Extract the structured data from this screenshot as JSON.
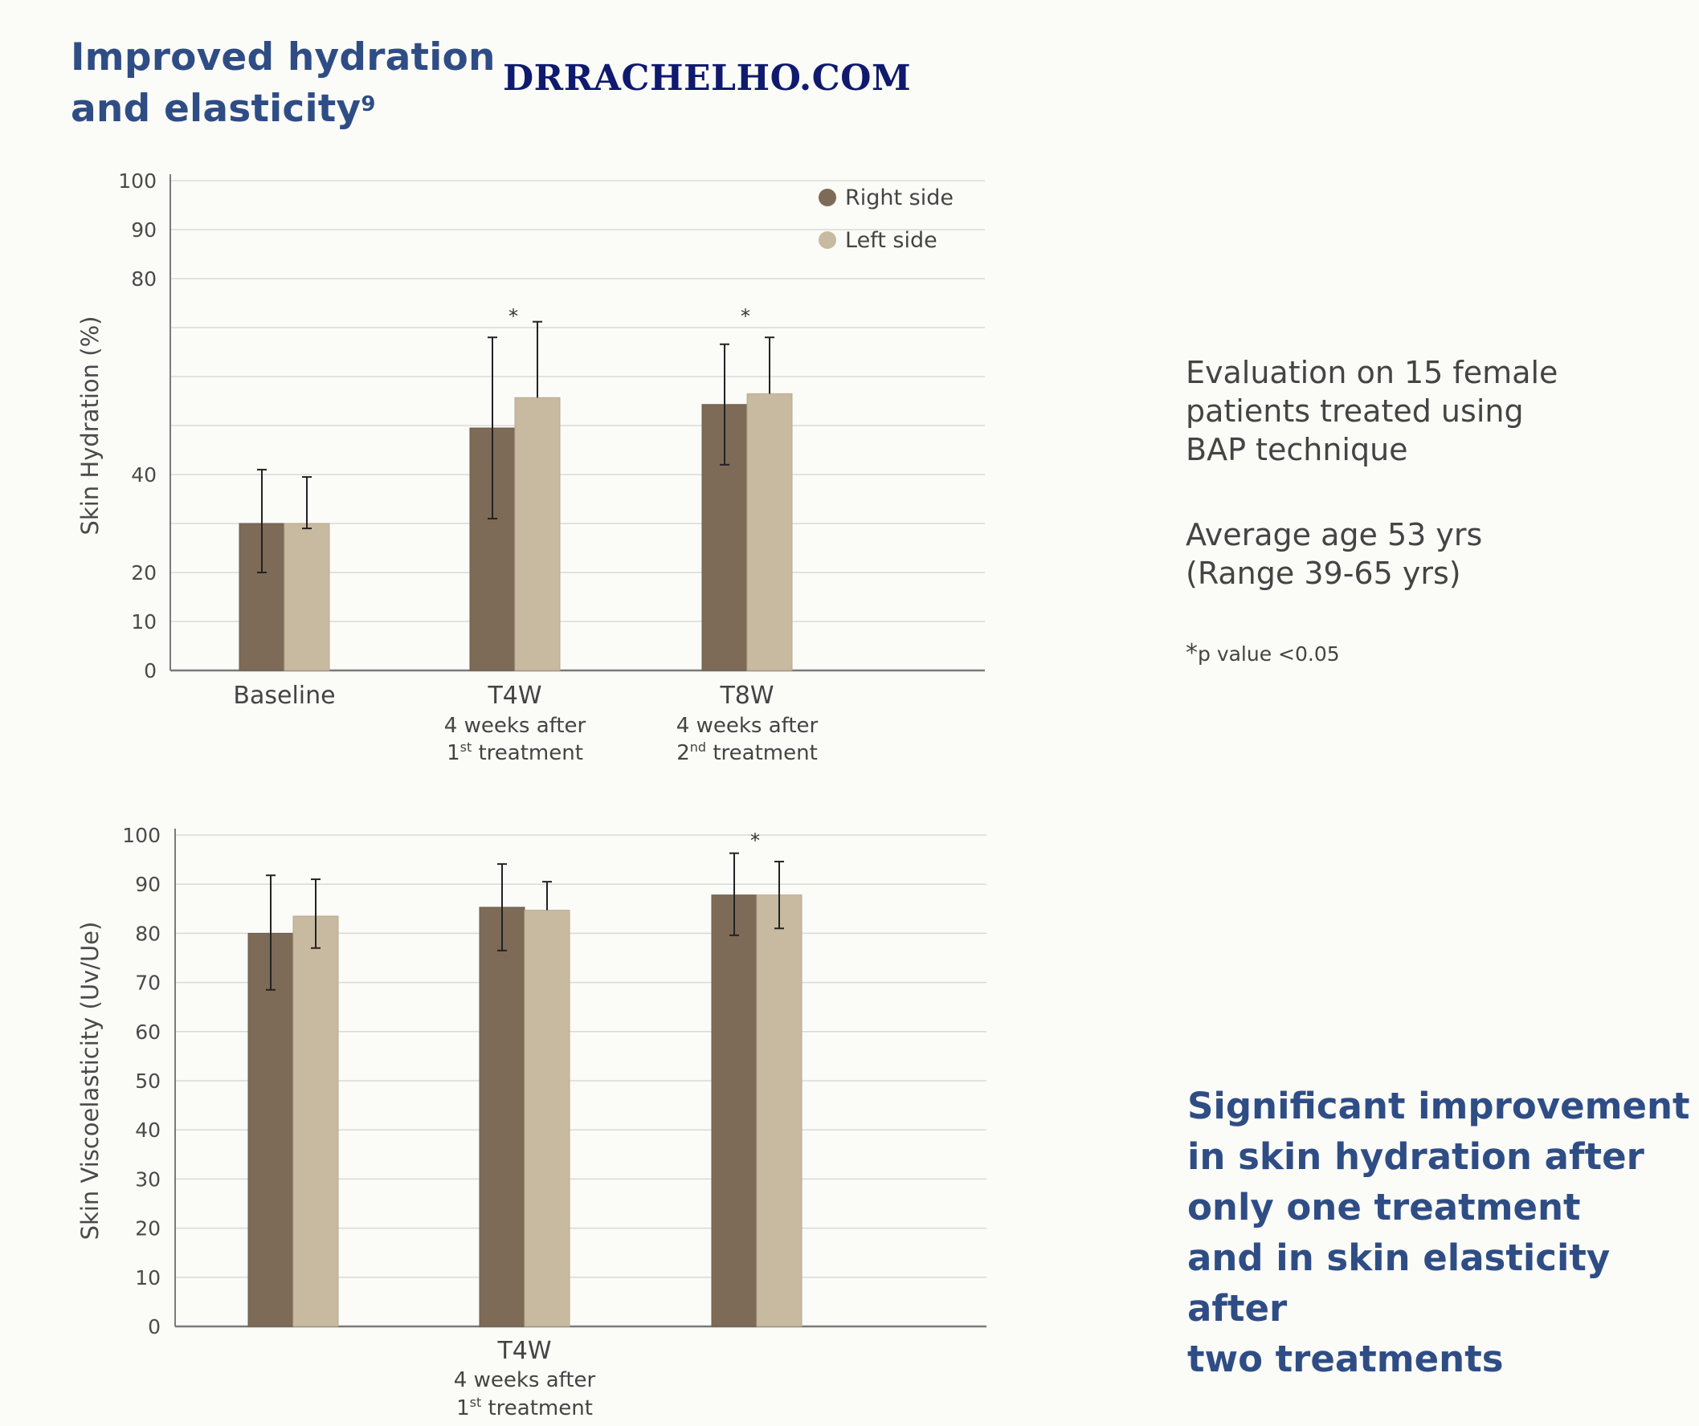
{
  "heading": {
    "line1": "Improved hydration",
    "line2": "and elasticity",
    "ref": "9"
  },
  "watermark": "DRRACHELHO.COM",
  "colors": {
    "right": "#7d6b58",
    "left": "#c8baa0",
    "grid": "#d9d9d9",
    "axis": "#7a7a7a",
    "heading": "#2f4d85",
    "watermark": "#0f1a6e"
  },
  "info": {
    "line1": "Evaluation on 15 female",
    "line2": "patients treated using",
    "line3": "BAP technique",
    "line4": "Average age 53 yrs",
    "line5": "(Range 39-65 yrs)",
    "note_star": "*",
    "note_text": "p value <0.05"
  },
  "conclusion": {
    "line1": "Significant improvement",
    "line2": "in skin hydration after",
    "line3": "only one treatment",
    "line4": "and in skin elasticity after",
    "line5": "two treatments"
  },
  "chart_data": [
    {
      "type": "bar",
      "ylabel": "Skin Hydration (%)",
      "ylim": [
        0,
        100
      ],
      "yticks": [
        "0",
        "10",
        "20",
        "40",
        "80",
        "90",
        "100"
      ],
      "ytick_values": [
        0,
        10,
        20,
        40,
        80,
        90,
        100
      ],
      "grid_values": [
        0,
        10,
        20,
        30,
        40,
        50,
        60,
        70,
        80,
        90,
        100
      ],
      "grid": true,
      "legend": [
        "Right side",
        "Left side"
      ],
      "legend_position": "top-right",
      "categories": [
        {
          "label": "Baseline",
          "sub1": "",
          "sub2": "",
          "sup": "",
          "sub2_rest": ""
        },
        {
          "label": "T4W",
          "sub1": "4 weeks after",
          "sub2": "1",
          "sup": "st",
          "sub2_rest": " treatment"
        },
        {
          "label": "T8W",
          "sub1": "4 weeks after",
          "sub2": "2",
          "sup": "nd",
          "sub2_rest": " treatment"
        }
      ],
      "significance": [
        "",
        "*",
        "*"
      ],
      "series": [
        {
          "name": "Right side",
          "values": [
            30,
            49.5,
            54.3
          ],
          "err_low": [
            10,
            18.5,
            12.3
          ],
          "err_high": [
            11,
            18.5,
            12.3
          ]
        },
        {
          "name": "Left side",
          "values": [
            30,
            55.7,
            56.5
          ],
          "err_low": [
            1,
            0,
            0
          ],
          "err_high": [
            9.5,
            15.5,
            11.5
          ]
        }
      ]
    },
    {
      "type": "bar",
      "ylabel": "Skin Viscoelasticity (Uv/Ue)",
      "ylim": [
        0,
        100
      ],
      "yticks": [
        "0",
        "10",
        "20",
        "30",
        "40",
        "50",
        "60",
        "70",
        "80",
        "90",
        "100"
      ],
      "ytick_values": [
        0,
        10,
        20,
        30,
        40,
        50,
        60,
        70,
        80,
        90,
        100
      ],
      "grid_values": [
        0,
        10,
        20,
        30,
        40,
        50,
        60,
        70,
        80,
        90,
        100
      ],
      "grid": true,
      "categories": [
        {
          "label": "",
          "sub1": "",
          "sub2": "",
          "sup": "",
          "sub2_rest": ""
        },
        {
          "label": "T4W",
          "sub1": "4 weeks after",
          "sub2": "1",
          "sup": "st",
          "sub2_rest": " treatment"
        },
        {
          "label": "",
          "sub1": "",
          "sub2": "",
          "sup": "",
          "sub2_rest": ""
        }
      ],
      "significance": [
        "",
        "",
        "*"
      ],
      "series": [
        {
          "name": "Right side",
          "values": [
            80,
            85.3,
            87.8
          ],
          "err_low": [
            11.5,
            8.8,
            8.2
          ],
          "err_high": [
            11.8,
            8.8,
            8.5
          ]
        },
        {
          "name": "Left side",
          "values": [
            83.5,
            84.7,
            87.8
          ],
          "err_low": [
            6.5,
            0,
            6.8
          ],
          "err_high": [
            7.5,
            5.8,
            6.8
          ]
        }
      ]
    }
  ]
}
